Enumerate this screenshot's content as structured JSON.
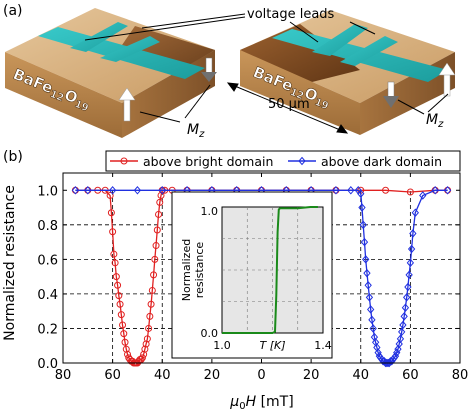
{
  "panel_a": {
    "label": "(a)",
    "voltage_leads": "voltage leads",
    "material_base": "BaFe",
    "material_sub1": "12",
    "material_mid": "O",
    "material_sub2": "19",
    "scale": "50 µm",
    "mz_main": "M",
    "mz_sub": "z",
    "colors": {
      "lead": "#2ab7b7",
      "bright_domain": "#d9b88a",
      "dark_domain": "#7a4a24",
      "block_side": "#b9874f"
    }
  },
  "panel_b": {
    "label": "(b)",
    "ylabel": "Normalized resistance",
    "xlabel_main": "μ",
    "xlabel_sub": "0",
    "xlabel_rest": "H [mT]"
  },
  "chart_data": [
    {
      "type": "line",
      "xlabel": "μ0H [mT]",
      "ylabel": "Normalized resistance",
      "x_reversed_labels": true,
      "xticks": [
        "80",
        "60",
        "40",
        "20",
        "0",
        "20",
        "40",
        "60",
        "80"
      ],
      "yticks": [
        "0.0",
        "0.2",
        "0.4",
        "0.6",
        "0.8",
        "1.0"
      ],
      "xlim": [
        -80,
        80
      ],
      "ylim": [
        0,
        1.1
      ],
      "grid": "dashed horizontal lines at 0.2–0.8, dashed verticals at ±40 and ±60",
      "legend_placement": "top",
      "series": [
        {
          "name": "above bright domain",
          "color": "#e02020",
          "marker": "circle",
          "x": [
            -75,
            -70,
            -66,
            -63,
            -61,
            -60.5,
            -60,
            -59.5,
            -59,
            -58.5,
            -58,
            -57.5,
            -57,
            -56.5,
            -56,
            -55.5,
            -55,
            -54.5,
            -54,
            -53.5,
            -53,
            -52.5,
            -52,
            -51.5,
            -51,
            -50.5,
            -50,
            -49.5,
            -49,
            -48.5,
            -48,
            -47.5,
            -47,
            -46.5,
            -46,
            -45.5,
            -45,
            -44.5,
            -44,
            -43.5,
            -43,
            -42.5,
            -42,
            -41.5,
            -41,
            -40.5,
            -40,
            -39,
            -36,
            -30,
            -20,
            -10,
            0,
            10,
            20,
            30,
            40,
            50,
            60,
            70,
            75
          ],
          "y": [
            1.0,
            1.0,
            1.0,
            1.0,
            0.97,
            0.87,
            0.76,
            0.63,
            0.58,
            0.5,
            0.45,
            0.39,
            0.34,
            0.28,
            0.22,
            0.17,
            0.12,
            0.08,
            0.05,
            0.03,
            0.02,
            0.01,
            0.01,
            0.0,
            0.0,
            0.0,
            0.0,
            0.01,
            0.02,
            0.02,
            0.03,
            0.05,
            0.08,
            0.11,
            0.14,
            0.2,
            0.27,
            0.34,
            0.42,
            0.51,
            0.6,
            0.68,
            0.77,
            0.86,
            0.93,
            0.97,
            1.0,
            1.0,
            1.0,
            1.0,
            1.0,
            1.0,
            1.0,
            1.0,
            1.0,
            1.0,
            1.0,
            1.0,
            0.99,
            1.0,
            1.0
          ]
        },
        {
          "name": "above dark domain",
          "color": "#2030e0",
          "marker": "diamond",
          "x": [
            -75,
            -70,
            -60,
            -50,
            -40,
            -30,
            -20,
            -10,
            0,
            10,
            20,
            30,
            36,
            39,
            40,
            40.5,
            41,
            41.5,
            42,
            42.5,
            43,
            43.5,
            44,
            44.5,
            45,
            45.5,
            46,
            46.5,
            47,
            47.5,
            48,
            48.5,
            49,
            49.5,
            50,
            50.5,
            51,
            51.5,
            52,
            52.5,
            53,
            53.5,
            54,
            54.5,
            55,
            55.5,
            56,
            56.5,
            57,
            57.5,
            58,
            58.5,
            59,
            59.5,
            60,
            60.5,
            61,
            62,
            65,
            70,
            75
          ],
          "y": [
            1.0,
            1.0,
            1.0,
            1.0,
            1.0,
            1.0,
            1.0,
            1.0,
            1.0,
            1.0,
            1.0,
            1.0,
            1.0,
            1.0,
            0.98,
            0.9,
            0.8,
            0.7,
            0.6,
            0.52,
            0.45,
            0.38,
            0.31,
            0.25,
            0.2,
            0.15,
            0.12,
            0.09,
            0.06,
            0.04,
            0.03,
            0.02,
            0.01,
            0.01,
            0.0,
            0.0,
            0.0,
            0.0,
            0.01,
            0.01,
            0.02,
            0.03,
            0.04,
            0.06,
            0.08,
            0.11,
            0.14,
            0.18,
            0.22,
            0.27,
            0.32,
            0.38,
            0.44,
            0.51,
            0.58,
            0.66,
            0.75,
            0.87,
            0.97,
            1.0,
            1.0
          ]
        }
      ]
    },
    {
      "type": "line",
      "inset": true,
      "xlabel": "T [K]",
      "ylabel": "Normalized resistance",
      "xticks": [
        "1.0",
        "1.4"
      ],
      "yticks": [
        "0.0",
        "1.0"
      ],
      "xlim": [
        1.0,
        1.4
      ],
      "ylim": [
        0,
        1.0
      ],
      "series": [
        {
          "color": "#1a8a1a",
          "x": [
            1.0,
            1.05,
            1.1,
            1.15,
            1.2,
            1.21,
            1.215,
            1.22,
            1.225,
            1.23,
            1.25,
            1.3,
            1.35,
            1.38
          ],
          "y": [
            0.0,
            0.0,
            0.0,
            0.0,
            0.0,
            0.01,
            0.3,
            0.8,
            0.98,
            0.99,
            0.99,
            0.99,
            1.0,
            1.0
          ]
        }
      ]
    }
  ]
}
